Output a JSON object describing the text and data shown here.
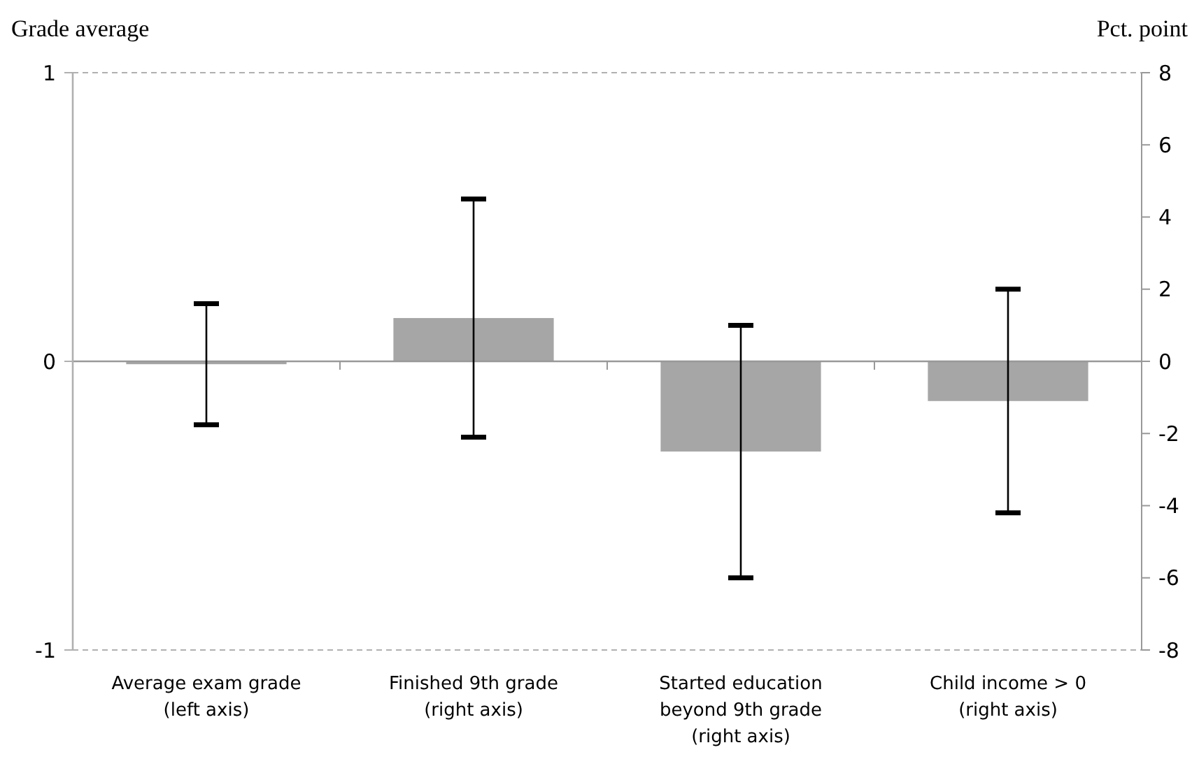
{
  "chart_data": {
    "type": "bar",
    "ylabel": "Grade average",
    "y2label": "Pct. point",
    "categories": [
      "Average exam grade (left axis)",
      "Finished 9th grade (right axis)",
      "Started education beyond 9th grade (right axis)",
      "Child income > 0 (right axis)"
    ],
    "series": [
      {
        "color": "#a6a6a6",
        "values": [
          -0.01,
          null,
          null,
          null
        ],
        "errors": [
          [
            -0.22,
            0.2
          ],
          null,
          null,
          null
        ]
      },
      {
        "color": "#a6a6a6",
        "axis": "y2",
        "values": [
          null,
          1.2,
          -2.5,
          -1.1
        ],
        "errors": [
          null,
          [
            -2.1,
            4.5
          ],
          [
            -6,
            1
          ],
          [
            -4.2,
            2
          ]
        ]
      }
    ],
    "ylim": [
      -1,
      1
    ],
    "yticks": [
      -1,
      0,
      1
    ],
    "y2lim": [
      -8,
      8
    ],
    "y2ticks": [
      -8,
      -6,
      -4,
      -2,
      0,
      2,
      4,
      6,
      8
    ],
    "grid": "y"
  }
}
